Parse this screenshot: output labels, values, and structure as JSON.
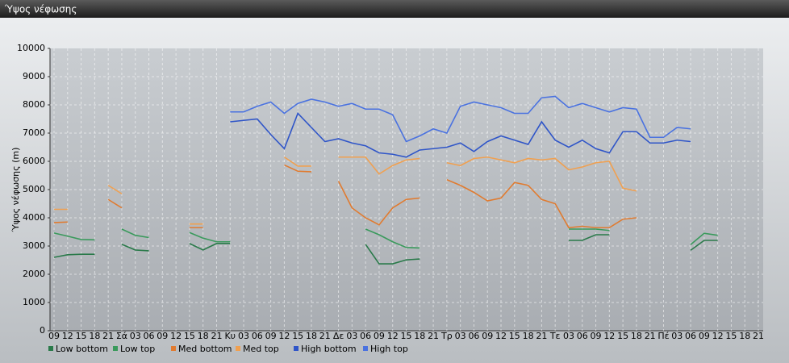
{
  "chart_data": {
    "type": "line",
    "title": "Ύψος νέφωσης",
    "y_label": "Ύψος νέφωσης (m)",
    "categories": [
      "09",
      "12",
      "15",
      "18",
      "21",
      "Σά",
      "03",
      "06",
      "09",
      "12",
      "15",
      "18",
      "21",
      "Κυ",
      "03",
      "06",
      "09",
      "12",
      "15",
      "18",
      "21",
      "Δε",
      "03",
      "06",
      "09",
      "12",
      "15",
      "18",
      "21",
      "Τρ",
      "03",
      "06",
      "09",
      "12",
      "15",
      "18",
      "21",
      "Τε",
      "03",
      "06",
      "09",
      "12",
      "15",
      "18",
      "21",
      "Πέ",
      "03",
      "06",
      "09",
      "12",
      "15",
      "18",
      "21"
    ],
    "series": [
      {
        "name": "Low bottom",
        "color": "#2a7a4a",
        "values": [
          2600,
          2690,
          2710,
          2710,
          null,
          3060,
          2860,
          2830,
          null,
          null,
          3090,
          2860,
          3090,
          3090,
          null,
          null,
          null,
          null,
          null,
          null,
          null,
          null,
          null,
          3060,
          2370,
          2370,
          2510,
          2540,
          null,
          null,
          null,
          null,
          null,
          null,
          null,
          null,
          null,
          null,
          3200,
          3200,
          3400,
          3400,
          null,
          null,
          null,
          null,
          null,
          2850,
          3200,
          3200,
          null,
          null,
          null
        ]
      },
      {
        "name": "Low top",
        "color": "#3a9a5c",
        "values": [
          3460,
          3350,
          3230,
          3220,
          null,
          3600,
          3380,
          3300,
          null,
          null,
          3480,
          3280,
          3150,
          3150,
          null,
          null,
          null,
          null,
          null,
          null,
          null,
          null,
          null,
          3600,
          3400,
          3150,
          2950,
          2930,
          null,
          null,
          null,
          null,
          null,
          null,
          null,
          null,
          null,
          null,
          3600,
          3600,
          3600,
          3550,
          null,
          null,
          null,
          null,
          null,
          3050,
          3450,
          3380,
          null,
          null,
          null
        ]
      },
      {
        "name": "Med bottom",
        "color": "#e07b30",
        "values": [
          3830,
          3850,
          null,
          null,
          4650,
          4350,
          null,
          null,
          null,
          null,
          3650,
          3650,
          null,
          null,
          null,
          null,
          null,
          5870,
          5650,
          5630,
          null,
          5300,
          4350,
          4000,
          3750,
          4350,
          4650,
          4700,
          null,
          5350,
          5150,
          4900,
          4600,
          4700,
          5250,
          5150,
          4650,
          4500,
          3650,
          3700,
          3650,
          3650,
          3950,
          4000,
          null,
          null,
          null,
          null,
          null,
          null,
          null,
          null,
          null
        ]
      },
      {
        "name": "Med top",
        "color": "#f0a050",
        "values": [
          4300,
          4300,
          null,
          null,
          5150,
          4850,
          null,
          null,
          null,
          null,
          3780,
          3780,
          null,
          null,
          null,
          null,
          null,
          6150,
          5830,
          5830,
          null,
          6150,
          6150,
          6150,
          5550,
          5850,
          6050,
          6100,
          null,
          5950,
          5850,
          6100,
          6150,
          6050,
          5950,
          6100,
          6050,
          6100,
          5700,
          5800,
          5950,
          6000,
          5050,
          4950,
          null,
          null,
          null,
          null,
          null,
          null,
          null,
          null,
          null
        ]
      },
      {
        "name": "High bottom",
        "color": "#2f55c8",
        "values": [
          null,
          null,
          null,
          null,
          null,
          null,
          null,
          null,
          null,
          null,
          null,
          null,
          null,
          7400,
          7450,
          7500,
          6950,
          6450,
          7700,
          7200,
          6700,
          6800,
          6650,
          6550,
          6300,
          6250,
          6150,
          6400,
          6450,
          6500,
          6650,
          6350,
          6700,
          6900,
          6750,
          6600,
          7400,
          6750,
          6500,
          6750,
          6450,
          6300,
          7050,
          7050,
          6650,
          6650,
          6750,
          6700,
          null,
          null,
          null,
          null,
          null
        ]
      },
      {
        "name": "High top",
        "color": "#4a72e0",
        "values": [
          null,
          null,
          null,
          null,
          null,
          null,
          null,
          null,
          null,
          null,
          null,
          null,
          null,
          7750,
          7750,
          7950,
          8100,
          7700,
          8050,
          8200,
          8100,
          7950,
          8050,
          7850,
          7850,
          7650,
          6700,
          6900,
          7150,
          7000,
          7950,
          8100,
          8000,
          7900,
          7700,
          7700,
          8250,
          8300,
          7900,
          8050,
          7900,
          7750,
          7900,
          7850,
          6850,
          6850,
          7200,
          7150,
          null,
          null,
          null,
          null,
          null
        ]
      }
    ],
    "ylim": [
      0,
      10000
    ],
    "yticks": [
      0,
      1000,
      2000,
      3000,
      4000,
      5000,
      6000,
      7000,
      8000,
      9000,
      10000
    ],
    "grid": true
  }
}
